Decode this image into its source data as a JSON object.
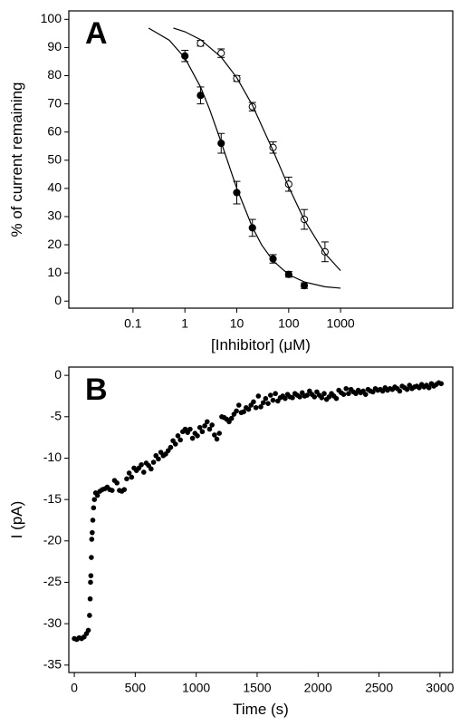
{
  "chart_data": [
    {
      "type": "scatter",
      "panel_label": "A",
      "x_label": "[Inhibitor] (μM)",
      "y_label": "% of current remaining",
      "xscale": "log",
      "xlim": [
        0.0058,
        145000
      ],
      "xticks": [
        0.1,
        1,
        10,
        100,
        1000
      ],
      "ylim": [
        -2.5,
        103
      ],
      "yticks": [
        0,
        10,
        20,
        30,
        40,
        50,
        60,
        70,
        80,
        90,
        100
      ],
      "series": [
        {
          "color": "#000000",
          "marker": "filled",
          "x": [
            1,
            2,
            5,
            10,
            20,
            50,
            100,
            200
          ],
          "values": [
            87,
            73,
            56,
            38.5,
            26,
            15,
            9.5,
            5.5
          ],
          "errors": [
            2,
            3,
            3.5,
            4,
            3,
            1.5,
            1,
            1
          ]
        },
        {
          "color": "#000000",
          "marker": "open",
          "x": [
            2,
            5,
            10,
            20,
            50,
            100,
            200,
            500
          ],
          "values": [
            91.5,
            88,
            79,
            69,
            54.5,
            41.5,
            29,
            17.5
          ],
          "errors": [
            1,
            1.5,
            1,
            1.5,
            2,
            2.5,
            3.5,
            3.5
          ]
        },
        {
          "color": "#000000",
          "line": true,
          "x": [
            0.2,
            0.5,
            1,
            2,
            3,
            5,
            10,
            20,
            30,
            50,
            100,
            200,
            500,
            1000
          ],
          "values": [
            96.9,
            92.6,
            86.3,
            76,
            68,
            56.4,
            40,
            26.2,
            20,
            14.3,
            9.4,
            6.8,
            5.1,
            4.6
          ]
        },
        {
          "color": "#000000",
          "line": true,
          "x": [
            0.6,
            1,
            2,
            5,
            10,
            20,
            50,
            100,
            200,
            500,
            1000
          ],
          "values": [
            96.9,
            95.6,
            92.8,
            86.6,
            79.3,
            69.5,
            53.4,
            40.5,
            28.8,
            16.9,
            10.8
          ]
        }
      ]
    },
    {
      "type": "scatter",
      "panel_label": "B",
      "x_label": "Time (s)",
      "y_label": "I (pA)",
      "xlim": [
        -45,
        3105
      ],
      "xticks": [
        0,
        500,
        1000,
        1500,
        2000,
        2500,
        3000
      ],
      "ylim": [
        -35.9,
        1
      ],
      "yticks": [
        0,
        -5,
        -10,
        -15,
        -20,
        -25,
        -30,
        -35
      ],
      "series": [
        {
          "color": "#000000",
          "marker": "filled",
          "size": 2.3,
          "x": [
            0,
            20,
            40,
            60,
            80,
            100,
            115,
            125,
            130,
            133,
            136,
            140,
            143,
            147,
            152,
            158,
            165,
            175,
            190,
            210,
            230,
            250,
            270,
            290,
            310,
            330,
            350,
            370,
            390,
            410,
            430,
            450,
            470,
            490,
            510,
            530,
            550,
            570,
            590,
            610,
            630,
            650,
            670,
            690,
            710,
            730,
            750,
            770,
            790,
            810,
            830,
            850,
            870,
            890,
            910,
            930,
            950,
            970,
            990,
            1010,
            1030,
            1050,
            1070,
            1090,
            1110,
            1130,
            1150,
            1170,
            1190,
            1210,
            1230,
            1250,
            1270,
            1290,
            1310,
            1330,
            1350,
            1370,
            1390,
            1410,
            1430,
            1450,
            1470,
            1490,
            1510,
            1530,
            1550,
            1570,
            1590,
            1610,
            1630,
            1650,
            1670,
            1690,
            1710,
            1730,
            1750,
            1770,
            1790,
            1810,
            1830,
            1850,
            1870,
            1890,
            1910,
            1930,
            1950,
            1970,
            1990,
            2010,
            2030,
            2050,
            2070,
            2090,
            2110,
            2130,
            2150,
            2170,
            2190,
            2210,
            2230,
            2250,
            2270,
            2290,
            2310,
            2330,
            2350,
            2370,
            2390,
            2410,
            2430,
            2450,
            2470,
            2490,
            2510,
            2530,
            2550,
            2570,
            2590,
            2610,
            2630,
            2650,
            2670,
            2690,
            2710,
            2730,
            2750,
            2770,
            2790,
            2810,
            2830,
            2850,
            2870,
            2890,
            2910,
            2930,
            2950,
            2970,
            2990,
            3010
          ],
          "values": [
            -31.8,
            -31.9,
            -31.7,
            -31.8,
            -31.6,
            -31.2,
            -30.8,
            -29,
            -27,
            -25,
            -24.2,
            -22,
            -19.8,
            -19,
            -17.5,
            -16,
            -15,
            -14.2,
            -14.5,
            -14,
            -13.8,
            -13.7,
            -13.5,
            -13.8,
            -13.9,
            -12.7,
            -13,
            -13.9,
            -14,
            -13.8,
            -12.5,
            -11.8,
            -12.3,
            -11.2,
            -11.5,
            -11.2,
            -10.8,
            -11.7,
            -10.6,
            -10.9,
            -11.3,
            -10.5,
            -9.7,
            -10.1,
            -9.3,
            -9.7,
            -9.5,
            -9.1,
            -8.7,
            -7.9,
            -8.3,
            -7.3,
            -7.8,
            -6.8,
            -6.5,
            -6.9,
            -6.5,
            -7.6,
            -7,
            -7.3,
            -6.3,
            -6.8,
            -6.1,
            -5.6,
            -6.5,
            -6,
            -7.2,
            -7.7,
            -7,
            -5,
            -5.1,
            -5.3,
            -5.6,
            -5.2,
            -4.7,
            -4.3,
            -3.6,
            -4.5,
            -4.4,
            -3.9,
            -4.1,
            -3.6,
            -3.2,
            -3.9,
            -2.5,
            -3.8,
            -3.3,
            -2.8,
            -3.4,
            -2.4,
            -3,
            -2.2,
            -3.1,
            -2.7,
            -2.5,
            -2.8,
            -2.3,
            -2.6,
            -2.7,
            -2.2,
            -2.4,
            -2.6,
            -2.1,
            -2.5,
            -2.4,
            -1.9,
            -2.3,
            -2.6,
            -2,
            -2.4,
            -2.7,
            -2.2,
            -2.9,
            -2.6,
            -2.2,
            -2.5,
            -2.8,
            -1.8,
            -2.1,
            -2.3,
            -1.6,
            -2.2,
            -1.7,
            -2,
            -2.2,
            -1.8,
            -2.1,
            -1.9,
            -2.3,
            -1.7,
            -1.9,
            -2,
            -1.6,
            -1.8,
            -1.7,
            -1.9,
            -1.5,
            -1.8,
            -1.6,
            -1.7,
            -1.4,
            -1.6,
            -1.9,
            -1.3,
            -1.5,
            -1.7,
            -1.2,
            -1.6,
            -1.4,
            -1.3,
            -1.5,
            -1.1,
            -1.4,
            -1.2,
            -1.5,
            -1,
            -1.3,
            -1.1,
            -0.9,
            -1
          ]
        }
      ]
    }
  ]
}
